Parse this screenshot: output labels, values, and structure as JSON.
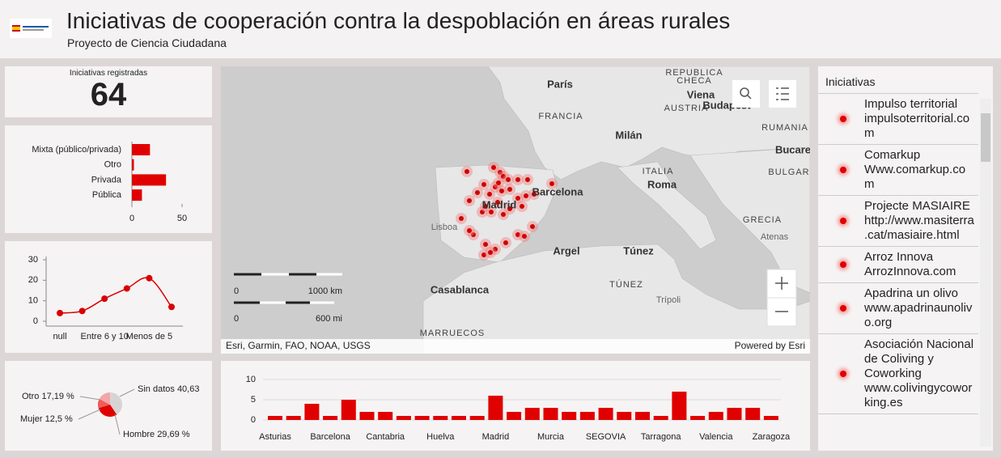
{
  "header": {
    "title": "Iniciativas de cooperación contra la despoblación en áreas rurales",
    "subtitle": "Proyecto de Ciencia Ciudadana"
  },
  "indicator": {
    "label": "Iniciativas registradas",
    "value": 64
  },
  "chart_data": [
    {
      "type": "bar",
      "horizontal": true,
      "categories": [
        "Mixta (público/privada)",
        "Otro",
        "Privada",
        "Pública"
      ],
      "values": [
        18,
        2,
        34,
        10
      ],
      "color": "#e00000",
      "xlim": [
        0,
        50
      ],
      "xticks": [
        0,
        50
      ]
    },
    {
      "type": "line",
      "categories": [
        "null",
        null,
        "Entre 6 y 10",
        null,
        "Menos de 5",
        null
      ],
      "values": [
        4,
        5,
        11,
        16,
        21,
        7
      ],
      "color": "#d90000",
      "ylim": [
        0,
        30
      ],
      "yticks": [
        0,
        10,
        20,
        30
      ]
    },
    {
      "type": "pie",
      "categories": [
        "Otro",
        "Sin datos",
        "Mujer",
        "Hombre"
      ],
      "values": [
        17.19,
        40.63,
        12.5,
        29.69
      ],
      "value_labels": [
        "17,19 %",
        "40,63",
        "12,5 %",
        "29,69 %"
      ],
      "colors": [
        "#f3a6a6",
        "#d9d4d4",
        "#f05a5a",
        "#e00000"
      ]
    },
    {
      "type": "bar",
      "categories": [
        "Asturias",
        null,
        null,
        "Barcelona",
        null,
        null,
        "Cantabria",
        null,
        null,
        "Huelva",
        null,
        null,
        "Madrid",
        null,
        null,
        "Murcia",
        null,
        null,
        "SEGOVIA",
        null,
        null,
        "Tarragona",
        null,
        null,
        "Valencia",
        null,
        null,
        "Zaragoza"
      ],
      "values": [
        1,
        1,
        4,
        1,
        5,
        2,
        2,
        1,
        1,
        1,
        1,
        1,
        6,
        2,
        3,
        3,
        2,
        2,
        3,
        2,
        2,
        1,
        7,
        1,
        2,
        3,
        3,
        1
      ],
      "color": "#e00000",
      "ylim": [
        0,
        10
      ],
      "yticks": [
        0,
        5,
        10
      ],
      "grid": true
    }
  ],
  "map": {
    "labels": [
      "REPUBLICA",
      "CHECA",
      "París",
      "FRANCIA",
      "Viena",
      "AUSTRIA",
      "Budapest",
      "RUMANIA",
      "Milán",
      "Bucare",
      "ITALIA",
      "Roma",
      "BULGAR",
      "Barcelona",
      "Madrid",
      "Lisboa",
      "GRECIA",
      "Atenas",
      "Argel",
      "Túnez",
      "TÚNEZ",
      "Trípoli",
      "Casablanca",
      "MARRUECOS"
    ],
    "scale": [
      "0",
      "1000 km",
      "0",
      "600 mi"
    ],
    "attribution": "Esri, Garmin, FAO, NOAA, USGS",
    "powered": "Powered by Esri"
  },
  "list": {
    "title": "Iniciativas",
    "items": [
      {
        "name": "Impulso territorial",
        "url": "impulsoterritorial.com"
      },
      {
        "name": "Comarkup",
        "url": "Www.comarkup.com"
      },
      {
        "name": "Projecte MASIAIRE",
        "url": "http://www.masiterra.cat/masiaire.html"
      },
      {
        "name": "Arroz Innova",
        "url": "ArrozInnova.com"
      },
      {
        "name": "Apadrina un olivo",
        "url": "www.apadrinaunolivo.org"
      },
      {
        "name": "Asociación Nacional de Coliving y Coworking",
        "url": "www.colivingycoworking.es"
      }
    ]
  }
}
